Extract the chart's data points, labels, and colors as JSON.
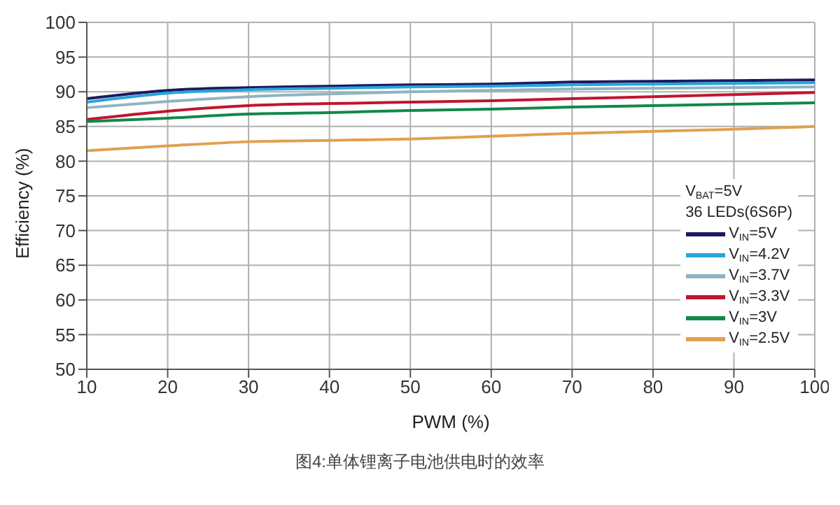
{
  "chart_data": {
    "type": "line",
    "xlabel": "PWM (%)",
    "ylabel": "Efficiency (%)",
    "legend_title": "V$_{BAT}$=5V",
    "subtitle": "36 LEDs(6S6P)",
    "annotations": [
      "图4:单体锂离子电池供电时的效率"
    ],
    "x": [
      10,
      20,
      30,
      40,
      50,
      60,
      70,
      80,
      90,
      100
    ],
    "series": [
      {
        "name": "V$_{IN}$=5V",
        "color": "#1a1a5e",
        "values": [
          89,
          90.2,
          90.6,
          90.8,
          91,
          91.1,
          91.4,
          91.5,
          91.6,
          91.7
        ]
      },
      {
        "name": "V$_{IN}$=4.2V",
        "color": "#29a3dc",
        "values": [
          88.5,
          89.8,
          90.3,
          90.5,
          90.7,
          90.8,
          91,
          91.1,
          91.2,
          91.3
        ]
      },
      {
        "name": "V$_{IN}$=3.7V",
        "color": "#8fb4c0",
        "values": [
          87.7,
          88.6,
          89.3,
          89.7,
          90,
          90.2,
          90.4,
          90.5,
          90.6,
          90.7
        ]
      },
      {
        "name": "V$_{IN}$=3.3V",
        "color": "#c0152f",
        "values": [
          86,
          87.2,
          88,
          88.3,
          88.5,
          88.7,
          89,
          89.3,
          89.6,
          89.9
        ]
      },
      {
        "name": "V$_{IN}$=3V",
        "color": "#11884a",
        "values": [
          85.7,
          86.2,
          86.8,
          87,
          87.3,
          87.5,
          87.8,
          88,
          88.2,
          88.4
        ]
      },
      {
        "name": "V$_{IN}$=2.5V",
        "color": "#e0a050",
        "values": [
          81.5,
          82.2,
          82.8,
          83,
          83.2,
          83.6,
          84,
          84.3,
          84.6,
          85
        ]
      }
    ],
    "xlim": [
      10,
      100
    ],
    "xticks": [
      10,
      20,
      30,
      40,
      50,
      60,
      70,
      80,
      90,
      100
    ],
    "ylim": [
      50,
      100
    ],
    "yticks": [
      50,
      55,
      60,
      65,
      70,
      75,
      80,
      85,
      90,
      95,
      100
    ],
    "grid": true,
    "legend": "bottom right",
    "marker": "none",
    "line_style": "solid"
  }
}
